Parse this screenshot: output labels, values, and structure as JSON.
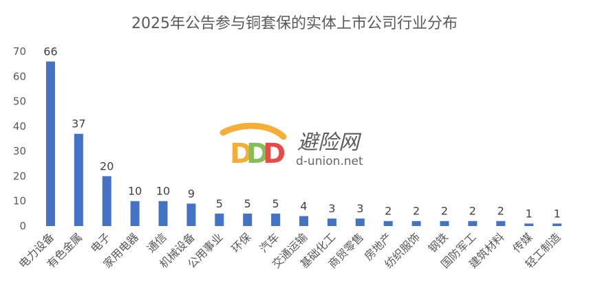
{
  "chart_data": {
    "type": "bar",
    "title": "2025年公告参与铜套保的实体上市公司行业分布",
    "categories": [
      "电力设备",
      "有色金属",
      "电子",
      "家用电器",
      "通信",
      "机械设备",
      "公用事业",
      "环保",
      "汽车",
      "交通运输",
      "基础化工",
      "商贸零售",
      "房地产",
      "纺织服饰",
      "钢铁",
      "国防军工",
      "建筑材料",
      "传媒",
      "轻工制造"
    ],
    "values": [
      66,
      37,
      20,
      10,
      10,
      9,
      5,
      5,
      5,
      4,
      3,
      3,
      2,
      2,
      2,
      2,
      2,
      1,
      1
    ],
    "ylim": [
      0,
      70
    ],
    "yticks": [
      0,
      10,
      20,
      30,
      40,
      50,
      60,
      70
    ],
    "xlabel": "",
    "ylabel": "",
    "grid": false,
    "bar_color": "#4472C4",
    "data_labels": true
  },
  "watermark": {
    "cn": "避险网",
    "en": "d-union.net",
    "colors": [
      "#F5A623",
      "#7AB648",
      "#E53935"
    ]
  }
}
